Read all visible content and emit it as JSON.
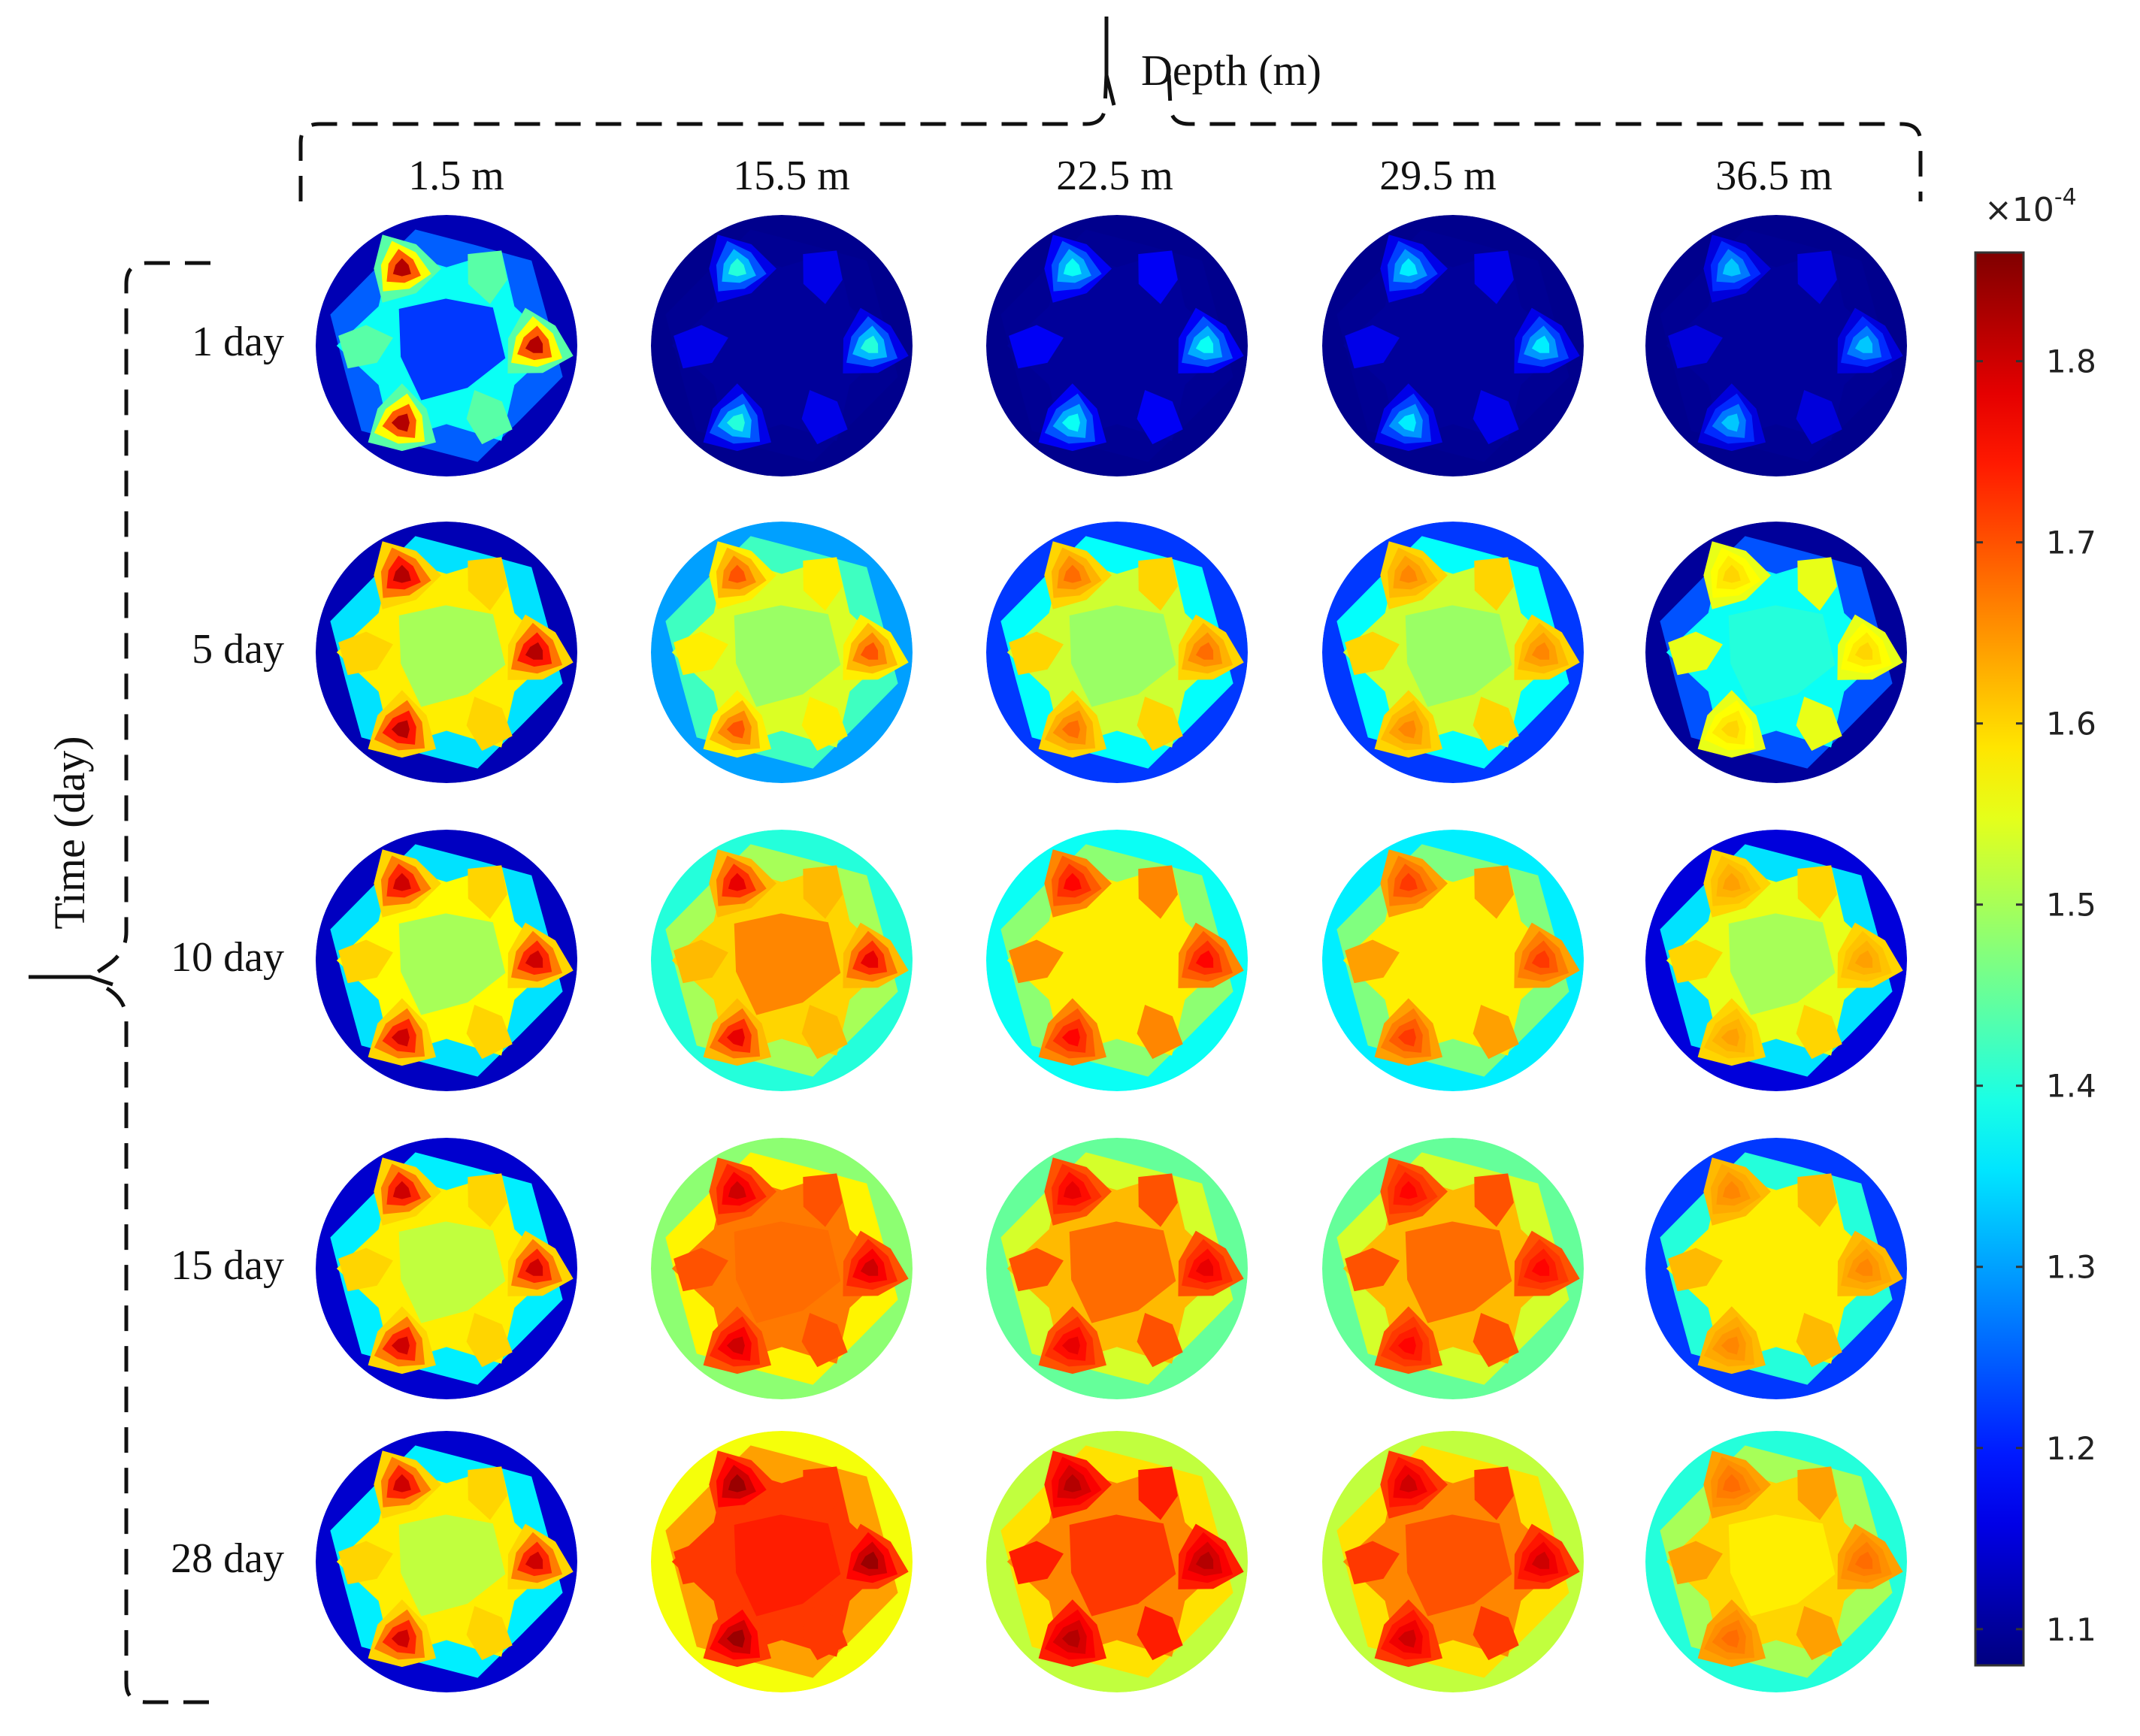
{
  "chart_data": {
    "type": "heatmap",
    "panel_shape": "circle",
    "colormap": "jet",
    "xlabel": "Depth (m)",
    "ylabel": "Time (day)",
    "columns": [
      "1.5 m",
      "15.5 m",
      "22.5 m",
      "29.5 m",
      "36.5 m"
    ],
    "rows": [
      "1 day",
      "5 day",
      "10 day",
      "15 day",
      "28 day"
    ],
    "colorbar": {
      "multiplier": "×10",
      "exponent": "-4",
      "min": 1.08,
      "max": 1.86,
      "ticks": [
        "1.1",
        "1.2",
        "1.3",
        "1.4",
        "1.5",
        "1.6",
        "1.7",
        "1.8"
      ],
      "tick_values": [
        1.1,
        1.2,
        1.3,
        1.4,
        1.5,
        1.6,
        1.7,
        1.8
      ]
    },
    "hotspot_angles_deg": [
      240,
      0,
      120
    ],
    "secondary_angles_deg": [
      300,
      180,
      60
    ],
    "panels": [
      [
        {
          "center": 1.22,
          "inner": 1.38,
          "edge": 1.12,
          "hot": 1.82,
          "warm": 1.44
        },
        {
          "center": 1.1,
          "inner": 1.1,
          "edge": 1.09,
          "hot": 1.4,
          "warm": 1.16
        },
        {
          "center": 1.1,
          "inner": 1.1,
          "edge": 1.09,
          "hot": 1.38,
          "warm": 1.17
        },
        {
          "center": 1.1,
          "inner": 1.1,
          "edge": 1.09,
          "hot": 1.36,
          "warm": 1.16
        },
        {
          "center": 1.1,
          "inner": 1.1,
          "edge": 1.09,
          "hot": 1.33,
          "warm": 1.15
        }
      ],
      [
        {
          "center": 1.5,
          "inner": 1.58,
          "edge": 1.12,
          "hot": 1.82,
          "warm": 1.6
        },
        {
          "center": 1.49,
          "inner": 1.54,
          "edge": 1.3,
          "hot": 1.7,
          "warm": 1.58
        },
        {
          "center": 1.49,
          "inner": 1.53,
          "edge": 1.22,
          "hot": 1.68,
          "warm": 1.6
        },
        {
          "center": 1.49,
          "inner": 1.53,
          "edge": 1.22,
          "hot": 1.66,
          "warm": 1.6
        },
        {
          "center": 1.4,
          "inner": 1.38,
          "edge": 1.1,
          "hot": 1.6,
          "warm": 1.55
        }
      ],
      [
        {
          "center": 1.5,
          "inner": 1.57,
          "edge": 1.13,
          "hot": 1.8,
          "warm": 1.6
        },
        {
          "center": 1.66,
          "inner": 1.6,
          "edge": 1.4,
          "hot": 1.78,
          "warm": 1.62
        },
        {
          "center": 1.58,
          "inner": 1.58,
          "edge": 1.38,
          "hot": 1.76,
          "warm": 1.66
        },
        {
          "center": 1.58,
          "inner": 1.58,
          "edge": 1.36,
          "hot": 1.72,
          "warm": 1.64
        },
        {
          "center": 1.5,
          "inner": 1.55,
          "edge": 1.15,
          "hot": 1.64,
          "warm": 1.6
        }
      ],
      [
        {
          "center": 1.52,
          "inner": 1.58,
          "edge": 1.14,
          "hot": 1.8,
          "warm": 1.6
        },
        {
          "center": 1.68,
          "inner": 1.67,
          "edge": 1.48,
          "hot": 1.8,
          "warm": 1.7
        },
        {
          "center": 1.68,
          "inner": 1.62,
          "edge": 1.45,
          "hot": 1.78,
          "warm": 1.7
        },
        {
          "center": 1.68,
          "inner": 1.62,
          "edge": 1.45,
          "hot": 1.76,
          "warm": 1.7
        },
        {
          "center": 1.58,
          "inner": 1.58,
          "edge": 1.22,
          "hot": 1.66,
          "warm": 1.62
        }
      ],
      [
        {
          "center": 1.52,
          "inner": 1.58,
          "edge": 1.14,
          "hot": 1.8,
          "warm": 1.6
        },
        {
          "center": 1.74,
          "inner": 1.72,
          "edge": 1.56,
          "hot": 1.84,
          "warm": 1.72
        },
        {
          "center": 1.72,
          "inner": 1.66,
          "edge": 1.52,
          "hot": 1.82,
          "warm": 1.74
        },
        {
          "center": 1.7,
          "inner": 1.66,
          "edge": 1.52,
          "hot": 1.8,
          "warm": 1.72
        },
        {
          "center": 1.58,
          "inner": 1.6,
          "edge": 1.4,
          "hot": 1.68,
          "warm": 1.64
        }
      ]
    ]
  }
}
